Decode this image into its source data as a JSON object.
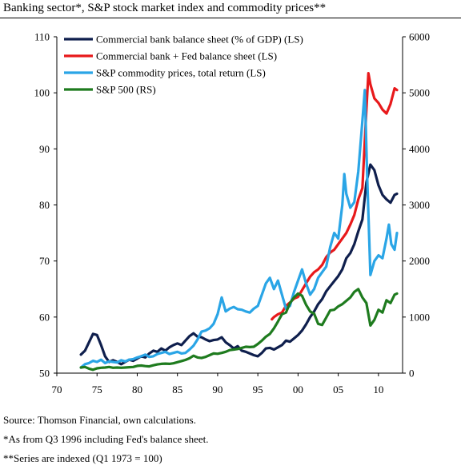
{
  "chart_data": {
    "type": "line",
    "title": "Banking sector*, S&P stock market index and commodity prices**",
    "x_ticks": [
      "70",
      "75",
      "80",
      "85",
      "90",
      "95",
      "00",
      "05",
      "10"
    ],
    "x_tick_values": [
      1970,
      1975,
      1980,
      1985,
      1990,
      1995,
      2000,
      2005,
      2010
    ],
    "xlim": [
      1970,
      2013
    ],
    "left_axis": {
      "ylim": [
        50,
        110
      ],
      "ticks": [
        50,
        60,
        70,
        80,
        90,
        100,
        110
      ]
    },
    "right_axis": {
      "ylim": [
        0,
        6000
      ],
      "ticks": [
        0,
        1000,
        2000,
        3000,
        4000,
        5000,
        6000
      ]
    },
    "grid": false,
    "legend_position": "top",
    "series": [
      {
        "name": "Commercial bank balance sheet (% of GDP) (LS)",
        "axis": "left",
        "color": "#0f1f4d",
        "points": [
          [
            1973.0,
            53.3
          ],
          [
            1973.5,
            54.0
          ],
          [
            1974.0,
            55.5
          ],
          [
            1974.5,
            57.0
          ],
          [
            1975.0,
            56.8
          ],
          [
            1975.5,
            55.0
          ],
          [
            1976.0,
            53.0
          ],
          [
            1976.5,
            52.0
          ],
          [
            1977.0,
            52.3
          ],
          [
            1977.5,
            52.0
          ],
          [
            1978.0,
            51.6
          ],
          [
            1978.5,
            52.0
          ],
          [
            1979.0,
            52.4
          ],
          [
            1979.5,
            52.2
          ],
          [
            1980.0,
            52.6
          ],
          [
            1980.5,
            53.0
          ],
          [
            1981.0,
            52.8
          ],
          [
            1981.5,
            53.5
          ],
          [
            1982.0,
            54.0
          ],
          [
            1982.5,
            53.8
          ],
          [
            1983.0,
            54.4
          ],
          [
            1983.5,
            54.0
          ],
          [
            1984.0,
            54.6
          ],
          [
            1984.5,
            55.0
          ],
          [
            1985.0,
            55.3
          ],
          [
            1985.5,
            55.0
          ],
          [
            1986.0,
            55.8
          ],
          [
            1986.5,
            56.6
          ],
          [
            1987.0,
            57.1
          ],
          [
            1987.5,
            56.5
          ],
          [
            1988.0,
            56.4
          ],
          [
            1988.5,
            56.0
          ],
          [
            1989.0,
            55.7
          ],
          [
            1989.5,
            55.9
          ],
          [
            1990.0,
            56.0
          ],
          [
            1990.5,
            56.4
          ],
          [
            1991.0,
            55.5
          ],
          [
            1991.5,
            55.0
          ],
          [
            1992.0,
            54.4
          ],
          [
            1992.5,
            54.8
          ],
          [
            1993.0,
            54.0
          ],
          [
            1993.5,
            53.8
          ],
          [
            1994.0,
            53.5
          ],
          [
            1994.5,
            53.2
          ],
          [
            1995.0,
            53.0
          ],
          [
            1995.5,
            53.6
          ],
          [
            1996.0,
            54.4
          ],
          [
            1996.5,
            54.5
          ],
          [
            1997.0,
            54.2
          ],
          [
            1997.5,
            54.6
          ],
          [
            1998.0,
            55.0
          ],
          [
            1998.5,
            55.8
          ],
          [
            1999.0,
            55.6
          ],
          [
            1999.5,
            56.2
          ],
          [
            2000.0,
            56.8
          ],
          [
            2000.5,
            57.6
          ],
          [
            2001.0,
            58.7
          ],
          [
            2001.5,
            60.0
          ],
          [
            2002.0,
            61.0
          ],
          [
            2002.5,
            62.3
          ],
          [
            2003.0,
            63.2
          ],
          [
            2003.5,
            64.6
          ],
          [
            2004.0,
            65.5
          ],
          [
            2004.5,
            66.4
          ],
          [
            2005.0,
            67.3
          ],
          [
            2005.5,
            68.5
          ],
          [
            2006.0,
            70.5
          ],
          [
            2006.5,
            71.4
          ],
          [
            2007.0,
            73.0
          ],
          [
            2007.5,
            75.3
          ],
          [
            2008.0,
            77.4
          ],
          [
            2008.5,
            84.0
          ],
          [
            2009.0,
            87.2
          ],
          [
            2009.5,
            86.2
          ],
          [
            2010.0,
            83.5
          ],
          [
            2010.5,
            81.8
          ],
          [
            2011.0,
            81.0
          ],
          [
            2011.5,
            80.4
          ],
          [
            2012.0,
            81.8
          ],
          [
            2012.3,
            82.0
          ]
        ]
      },
      {
        "name": "Commercial bank + Fed balance sheet (LS)",
        "axis": "left",
        "color": "#e8191b",
        "points": [
          [
            1996.75,
            59.6
          ],
          [
            1997.0,
            60.0
          ],
          [
            1997.5,
            60.5
          ],
          [
            1998.0,
            60.8
          ],
          [
            1998.5,
            62.0
          ],
          [
            1999.0,
            62.6
          ],
          [
            1999.5,
            63.3
          ],
          [
            2000.0,
            63.6
          ],
          [
            2000.5,
            64.8
          ],
          [
            2001.0,
            66.0
          ],
          [
            2001.5,
            67.2
          ],
          [
            2002.0,
            68.0
          ],
          [
            2002.5,
            68.5
          ],
          [
            2003.0,
            69.3
          ],
          [
            2003.5,
            70.7
          ],
          [
            2004.0,
            71.5
          ],
          [
            2004.5,
            72.0
          ],
          [
            2005.0,
            73.0
          ],
          [
            2005.5,
            74.0
          ],
          [
            2006.0,
            75.0
          ],
          [
            2006.5,
            76.5
          ],
          [
            2007.0,
            78.2
          ],
          [
            2007.5,
            81.0
          ],
          [
            2008.0,
            83.0
          ],
          [
            2008.5,
            97.0
          ],
          [
            2008.75,
            103.5
          ],
          [
            2009.0,
            101.5
          ],
          [
            2009.5,
            99.0
          ],
          [
            2010.0,
            98.2
          ],
          [
            2010.5,
            97.0
          ],
          [
            2011.0,
            96.3
          ],
          [
            2011.5,
            98.0
          ],
          [
            2012.0,
            100.8
          ],
          [
            2012.3,
            100.5
          ]
        ]
      },
      {
        "name": "S&P commodity prices, total return (LS)",
        "axis": "left",
        "color": "#2aa5e6",
        "points": [
          [
            1973.0,
            51.0
          ],
          [
            1973.5,
            51.6
          ],
          [
            1974.0,
            51.8
          ],
          [
            1974.5,
            52.2
          ],
          [
            1975.0,
            52.0
          ],
          [
            1975.5,
            52.4
          ],
          [
            1976.0,
            51.8
          ],
          [
            1976.5,
            52.1
          ],
          [
            1977.0,
            52.0
          ],
          [
            1977.5,
            51.9
          ],
          [
            1978.0,
            52.3
          ],
          [
            1978.5,
            52.1
          ],
          [
            1979.0,
            52.4
          ],
          [
            1979.5,
            52.5
          ],
          [
            1980.0,
            52.8
          ],
          [
            1980.5,
            53.0
          ],
          [
            1981.0,
            53.3
          ],
          [
            1981.5,
            52.9
          ],
          [
            1982.0,
            53.0
          ],
          [
            1982.5,
            53.4
          ],
          [
            1983.0,
            53.6
          ],
          [
            1983.5,
            53.8
          ],
          [
            1984.0,
            53.4
          ],
          [
            1984.5,
            53.6
          ],
          [
            1985.0,
            53.8
          ],
          [
            1985.5,
            53.5
          ],
          [
            1986.0,
            53.6
          ],
          [
            1986.5,
            54.2
          ],
          [
            1987.0,
            54.9
          ],
          [
            1987.5,
            56.0
          ],
          [
            1988.0,
            57.4
          ],
          [
            1988.5,
            57.6
          ],
          [
            1989.0,
            58.0
          ],
          [
            1989.5,
            58.8
          ],
          [
            1990.0,
            60.5
          ],
          [
            1990.5,
            63.5
          ],
          [
            1991.0,
            61.0
          ],
          [
            1991.5,
            61.5
          ],
          [
            1992.0,
            61.8
          ],
          [
            1992.5,
            61.4
          ],
          [
            1993.0,
            61.3
          ],
          [
            1993.5,
            61.0
          ],
          [
            1994.0,
            60.8
          ],
          [
            1994.5,
            61.5
          ],
          [
            1995.0,
            62.0
          ],
          [
            1995.5,
            64.0
          ],
          [
            1996.0,
            66.0
          ],
          [
            1996.5,
            67.0
          ],
          [
            1997.0,
            65.0
          ],
          [
            1997.5,
            66.5
          ],
          [
            1998.0,
            64.0
          ],
          [
            1998.5,
            61.5
          ],
          [
            1999.0,
            62.0
          ],
          [
            1999.5,
            64.5
          ],
          [
            2000.0,
            66.5
          ],
          [
            2000.5,
            68.5
          ],
          [
            2001.0,
            66.0
          ],
          [
            2001.5,
            64.0
          ],
          [
            2002.0,
            65.0
          ],
          [
            2002.5,
            67.0
          ],
          [
            2003.0,
            68.0
          ],
          [
            2003.5,
            69.0
          ],
          [
            2004.0,
            72.5
          ],
          [
            2004.5,
            75.0
          ],
          [
            2005.0,
            74.0
          ],
          [
            2005.5,
            80.0
          ],
          [
            2005.75,
            85.5
          ],
          [
            2006.0,
            82.0
          ],
          [
            2006.5,
            79.5
          ],
          [
            2007.0,
            80.5
          ],
          [
            2007.5,
            86.0
          ],
          [
            2008.0,
            95.0
          ],
          [
            2008.3,
            100.5
          ],
          [
            2008.6,
            85.0
          ],
          [
            2009.0,
            67.5
          ],
          [
            2009.5,
            70.0
          ],
          [
            2010.0,
            71.0
          ],
          [
            2010.5,
            70.5
          ],
          [
            2011.0,
            74.0
          ],
          [
            2011.3,
            76.5
          ],
          [
            2011.6,
            73.0
          ],
          [
            2012.0,
            72.0
          ],
          [
            2012.3,
            75.0
          ]
        ]
      },
      {
        "name": "S&P 500 (RS)",
        "axis": "right",
        "color": "#1e7b1e",
        "points": [
          [
            1973.0,
            100
          ],
          [
            1973.5,
            110
          ],
          [
            1974.0,
            80
          ],
          [
            1974.5,
            60
          ],
          [
            1975.0,
            85
          ],
          [
            1975.5,
            95
          ],
          [
            1976.0,
            100
          ],
          [
            1976.5,
            110
          ],
          [
            1977.0,
            95
          ],
          [
            1977.5,
            100
          ],
          [
            1978.0,
            95
          ],
          [
            1978.5,
            100
          ],
          [
            1979.0,
            105
          ],
          [
            1979.5,
            110
          ],
          [
            1980.0,
            130
          ],
          [
            1980.5,
            135
          ],
          [
            1981.0,
            125
          ],
          [
            1981.5,
            120
          ],
          [
            1982.0,
            140
          ],
          [
            1982.5,
            155
          ],
          [
            1983.0,
            165
          ],
          [
            1983.5,
            170
          ],
          [
            1984.0,
            165
          ],
          [
            1984.5,
            175
          ],
          [
            1985.0,
            195
          ],
          [
            1985.5,
            215
          ],
          [
            1986.0,
            235
          ],
          [
            1986.5,
            265
          ],
          [
            1987.0,
            310
          ],
          [
            1987.5,
            280
          ],
          [
            1988.0,
            270
          ],
          [
            1988.5,
            290
          ],
          [
            1989.0,
            320
          ],
          [
            1989.5,
            350
          ],
          [
            1990.0,
            345
          ],
          [
            1990.5,
            360
          ],
          [
            1991.0,
            380
          ],
          [
            1991.5,
            410
          ],
          [
            1992.0,
            420
          ],
          [
            1992.5,
            430
          ],
          [
            1993.0,
            450
          ],
          [
            1993.5,
            470
          ],
          [
            1994.0,
            465
          ],
          [
            1994.5,
            470
          ],
          [
            1995.0,
            520
          ],
          [
            1995.5,
            580
          ],
          [
            1996.0,
            650
          ],
          [
            1996.5,
            700
          ],
          [
            1997.0,
            800
          ],
          [
            1997.5,
            920
          ],
          [
            1998.0,
            1050
          ],
          [
            1998.5,
            1080
          ],
          [
            1999.0,
            1250
          ],
          [
            1999.5,
            1350
          ],
          [
            2000.0,
            1420
          ],
          [
            2000.5,
            1380
          ],
          [
            2001.0,
            1220
          ],
          [
            2001.5,
            1100
          ],
          [
            2002.0,
            1060
          ],
          [
            2002.5,
            880
          ],
          [
            2003.0,
            860
          ],
          [
            2003.5,
            990
          ],
          [
            2004.0,
            1120
          ],
          [
            2004.5,
            1130
          ],
          [
            2005.0,
            1190
          ],
          [
            2005.5,
            1230
          ],
          [
            2006.0,
            1290
          ],
          [
            2006.5,
            1350
          ],
          [
            2007.0,
            1450
          ],
          [
            2007.5,
            1500
          ],
          [
            2008.0,
            1350
          ],
          [
            2008.5,
            1250
          ],
          [
            2009.0,
            850
          ],
          [
            2009.5,
            950
          ],
          [
            2010.0,
            1130
          ],
          [
            2010.5,
            1080
          ],
          [
            2011.0,
            1300
          ],
          [
            2011.5,
            1250
          ],
          [
            2012.0,
            1400
          ],
          [
            2012.3,
            1420
          ]
        ]
      }
    ]
  },
  "notes": {
    "source": "Source: Thomson Financial, own calculations.",
    "note1": "*As from Q3 1996 including Fed's balance sheet.",
    "note2": "**Series are indexed (Q1 1973 = 100)"
  }
}
